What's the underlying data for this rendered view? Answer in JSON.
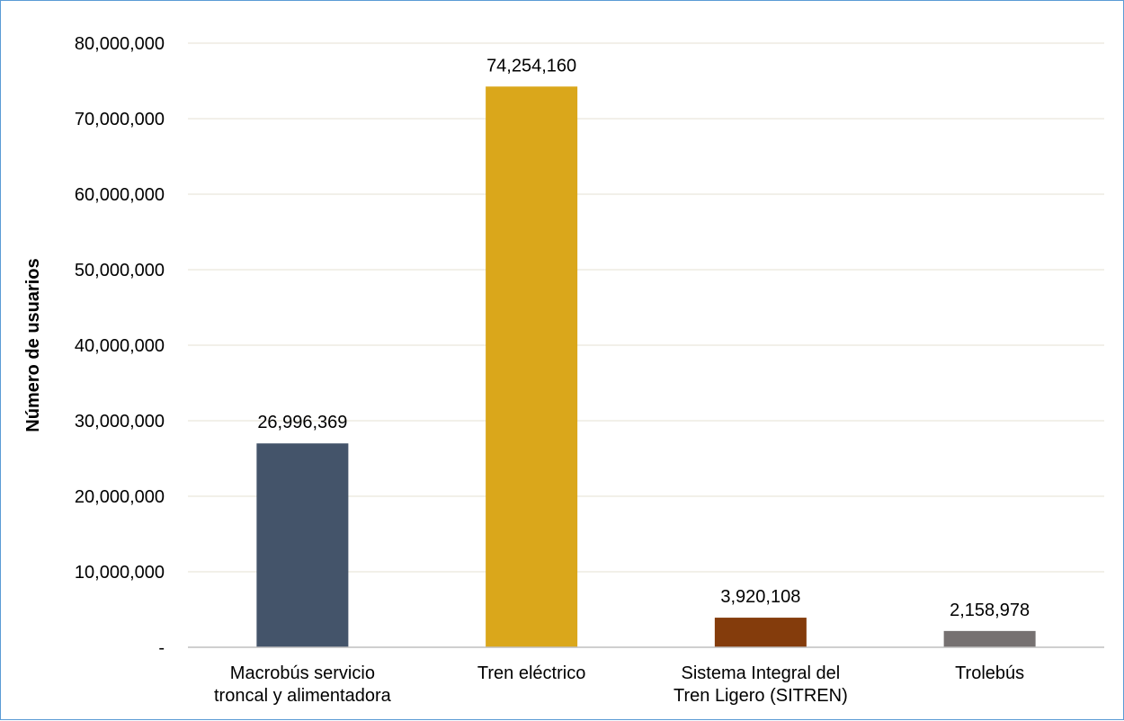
{
  "chart_data": {
    "type": "bar",
    "categories": [
      [
        "Macrobús servicio",
        "troncal y alimentadora"
      ],
      [
        "Tren eléctrico"
      ],
      [
        "Sistema Integral del",
        "Tren Ligero (SITREN)"
      ],
      [
        "Trolebús"
      ]
    ],
    "values": [
      26996369,
      74254160,
      3920108,
      2158978
    ],
    "data_labels": [
      "26,996,369",
      "74,254,160",
      "3,920,108",
      "2,158,978"
    ],
    "colors": [
      "#44546a",
      "#daa71b",
      "#843c0c",
      "#767171"
    ],
    "ylabel": "Número de usuarios",
    "ylim": [
      0,
      80000000
    ],
    "yticks": [
      0,
      10000000,
      20000000,
      30000000,
      40000000,
      50000000,
      60000000,
      70000000,
      80000000
    ],
    "ytick_labels": [
      "-",
      "10,000,000",
      "20,000,000",
      "30,000,000",
      "40,000,000",
      "50,000,000",
      "60,000,000",
      "70,000,000",
      "80,000,000"
    ],
    "grid": true,
    "gridline_color": "#e6e2d3",
    "legend": "none"
  }
}
